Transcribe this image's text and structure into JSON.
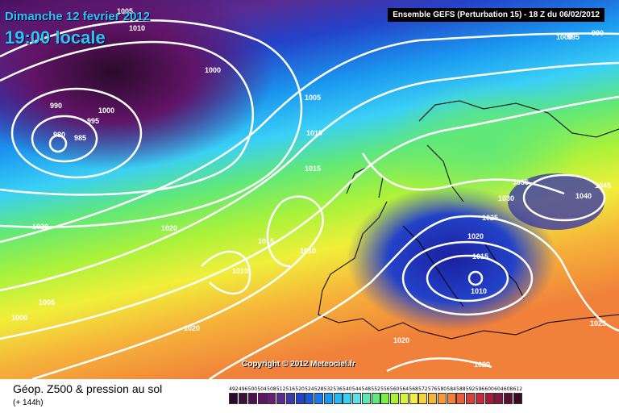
{
  "header": {
    "date_label": "Dimanche 12 fevrier 2012",
    "time_label": "19:00 locale",
    "run_info": "Ensemble GEFS (Perturbation 15)  -  18 Z du 06/02/2012"
  },
  "map": {
    "copyright": "Copyright © 2012 Meteociel.fr",
    "pressure_labels": [
      "1005",
      "1010",
      "1000",
      "990",
      "995",
      "980",
      "985",
      "1000",
      "1005",
      "1010",
      "1015",
      "1020",
      "1015",
      "1010",
      "1010",
      "1020",
      "1005",
      "1000",
      "1020",
      "1035",
      "1030",
      "1040",
      "1045",
      "1025",
      "1020",
      "1015",
      "1010",
      "1020",
      "1020",
      "1025",
      "995",
      "990",
      "1000"
    ]
  },
  "footer": {
    "caption": "Géop. Z500 & pression au sol",
    "lead_time": "(+ 144h)",
    "scale_labels": [
      "492",
      "496",
      "500",
      "504",
      "508",
      "512",
      "516",
      "520",
      "524",
      "528",
      "532",
      "536",
      "540",
      "544",
      "548",
      "552",
      "556",
      "560",
      "564",
      "568",
      "572",
      "576",
      "580",
      "584",
      "588",
      "592",
      "596",
      "600",
      "604",
      "608",
      "612"
    ],
    "scale_colors": [
      "#2a0a2a",
      "#3c0f3c",
      "#4d1050",
      "#601466",
      "#6e1a78",
      "#5a2a90",
      "#3a3aa8",
      "#2342c8",
      "#1a5ad8",
      "#1a78e8",
      "#1a98f0",
      "#22b8f6",
      "#3ad0f6",
      "#5ae0e6",
      "#5ce8b0",
      "#60e878",
      "#7af04a",
      "#a8f23a",
      "#d8f43a",
      "#f0f03a",
      "#f6d43a",
      "#f6b43a",
      "#f69a3a",
      "#f0803a",
      "#e8603a",
      "#d8403a",
      "#c8283a",
      "#a81a3a",
      "#801a3a",
      "#5a1030",
      "#3a0a20"
    ]
  }
}
